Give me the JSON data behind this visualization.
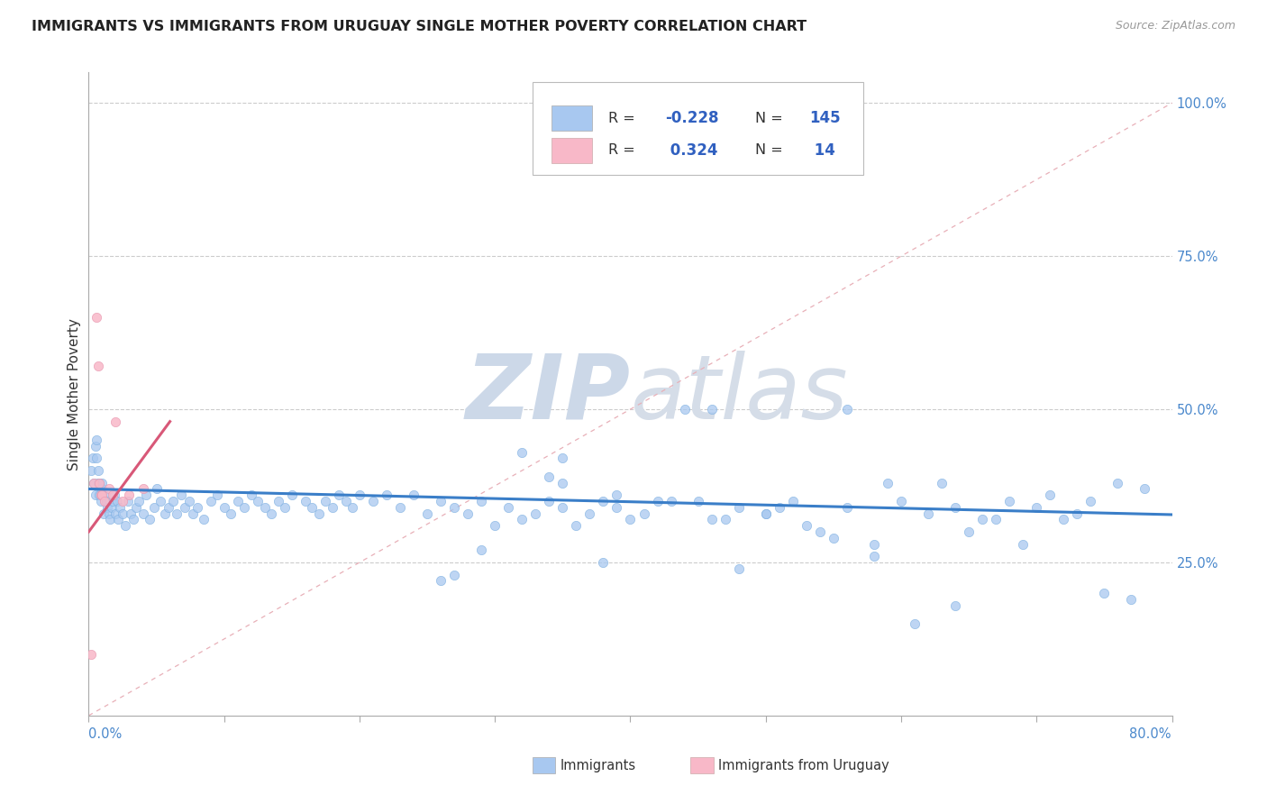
{
  "title": "IMMIGRANTS VS IMMIGRANTS FROM URUGUAY SINGLE MOTHER POVERTY CORRELATION CHART",
  "source": "Source: ZipAtlas.com",
  "ylabel": "Single Mother Poverty",
  "right_ytick_vals": [
    0.25,
    0.5,
    0.75,
    1.0
  ],
  "right_yticklabels": [
    "25.0%",
    "50.0%",
    "75.0%",
    "100.0%"
  ],
  "blue_fill_color": "#a8c8f0",
  "blue_edge_color": "#7aaee0",
  "pink_fill_color": "#f8b8c8",
  "pink_edge_color": "#e898b0",
  "blue_line_color": "#3a7ec8",
  "pink_line_color": "#d85878",
  "diag_color": "#e8b0b8",
  "xlim": [
    0.0,
    0.8
  ],
  "ylim": [
    0.0,
    1.05
  ],
  "blue_scatter_x": [
    0.002,
    0.003,
    0.004,
    0.005,
    0.005,
    0.006,
    0.006,
    0.007,
    0.007,
    0.008,
    0.008,
    0.009,
    0.009,
    0.01,
    0.01,
    0.011,
    0.012,
    0.013,
    0.014,
    0.015,
    0.016,
    0.017,
    0.018,
    0.019,
    0.02,
    0.021,
    0.022,
    0.023,
    0.025,
    0.027,
    0.029,
    0.031,
    0.033,
    0.035,
    0.037,
    0.04,
    0.042,
    0.045,
    0.048,
    0.05,
    0.053,
    0.056,
    0.059,
    0.062,
    0.065,
    0.068,
    0.071,
    0.074,
    0.077,
    0.08,
    0.085,
    0.09,
    0.095,
    0.1,
    0.105,
    0.11,
    0.115,
    0.12,
    0.125,
    0.13,
    0.135,
    0.14,
    0.145,
    0.15,
    0.16,
    0.165,
    0.17,
    0.175,
    0.18,
    0.185,
    0.19,
    0.195,
    0.2,
    0.21,
    0.22,
    0.23,
    0.24,
    0.25,
    0.26,
    0.27,
    0.28,
    0.29,
    0.3,
    0.31,
    0.32,
    0.33,
    0.34,
    0.35,
    0.36,
    0.37,
    0.38,
    0.39,
    0.4,
    0.42,
    0.44,
    0.46,
    0.48,
    0.5,
    0.52,
    0.54,
    0.56,
    0.58,
    0.6,
    0.62,
    0.64,
    0.66,
    0.68,
    0.7,
    0.72,
    0.74,
    0.76,
    0.78,
    0.56,
    0.48,
    0.38,
    0.63,
    0.71,
    0.5,
    0.45,
    0.55,
    0.47,
    0.53,
    0.59,
    0.65,
    0.67,
    0.69,
    0.73,
    0.75,
    0.77,
    0.39,
    0.41,
    0.43,
    0.46,
    0.51,
    0.35,
    0.32,
    0.34,
    0.29,
    0.27,
    0.26,
    0.58,
    0.61,
    0.64,
    0.35
  ],
  "blue_scatter_y": [
    0.4,
    0.42,
    0.38,
    0.36,
    0.44,
    0.45,
    0.42,
    0.4,
    0.38,
    0.36,
    0.38,
    0.36,
    0.35,
    0.37,
    0.38,
    0.33,
    0.36,
    0.35,
    0.34,
    0.33,
    0.32,
    0.34,
    0.35,
    0.36,
    0.33,
    0.35,
    0.32,
    0.34,
    0.33,
    0.31,
    0.35,
    0.33,
    0.32,
    0.34,
    0.35,
    0.33,
    0.36,
    0.32,
    0.34,
    0.37,
    0.35,
    0.33,
    0.34,
    0.35,
    0.33,
    0.36,
    0.34,
    0.35,
    0.33,
    0.34,
    0.32,
    0.35,
    0.36,
    0.34,
    0.33,
    0.35,
    0.34,
    0.36,
    0.35,
    0.34,
    0.33,
    0.35,
    0.34,
    0.36,
    0.35,
    0.34,
    0.33,
    0.35,
    0.34,
    0.36,
    0.35,
    0.34,
    0.36,
    0.35,
    0.36,
    0.34,
    0.36,
    0.33,
    0.35,
    0.34,
    0.33,
    0.35,
    0.31,
    0.34,
    0.32,
    0.33,
    0.35,
    0.34,
    0.31,
    0.33,
    0.35,
    0.34,
    0.32,
    0.35,
    0.5,
    0.5,
    0.34,
    0.33,
    0.35,
    0.3,
    0.34,
    0.28,
    0.35,
    0.33,
    0.34,
    0.32,
    0.35,
    0.34,
    0.32,
    0.35,
    0.38,
    0.37,
    0.5,
    0.24,
    0.25,
    0.38,
    0.36,
    0.33,
    0.35,
    0.29,
    0.32,
    0.31,
    0.38,
    0.3,
    0.32,
    0.28,
    0.33,
    0.2,
    0.19,
    0.36,
    0.33,
    0.35,
    0.32,
    0.34,
    0.42,
    0.43,
    0.39,
    0.27,
    0.23,
    0.22,
    0.26,
    0.15,
    0.18,
    0.38
  ],
  "pink_scatter_x": [
    0.002,
    0.004,
    0.006,
    0.007,
    0.008,
    0.009,
    0.01,
    0.012,
    0.015,
    0.018,
    0.02,
    0.03,
    0.04,
    0.025
  ],
  "pink_scatter_y": [
    0.1,
    0.38,
    0.65,
    0.57,
    0.38,
    0.36,
    0.36,
    0.35,
    0.37,
    0.36,
    0.48,
    0.36,
    0.37,
    0.35
  ],
  "blue_trend_start_y": 0.37,
  "blue_trend_end_y": 0.328,
  "pink_trend_start_x": 0.0,
  "pink_trend_start_y": 0.3,
  "pink_trend_end_x": 0.06,
  "pink_trend_end_y": 0.48
}
